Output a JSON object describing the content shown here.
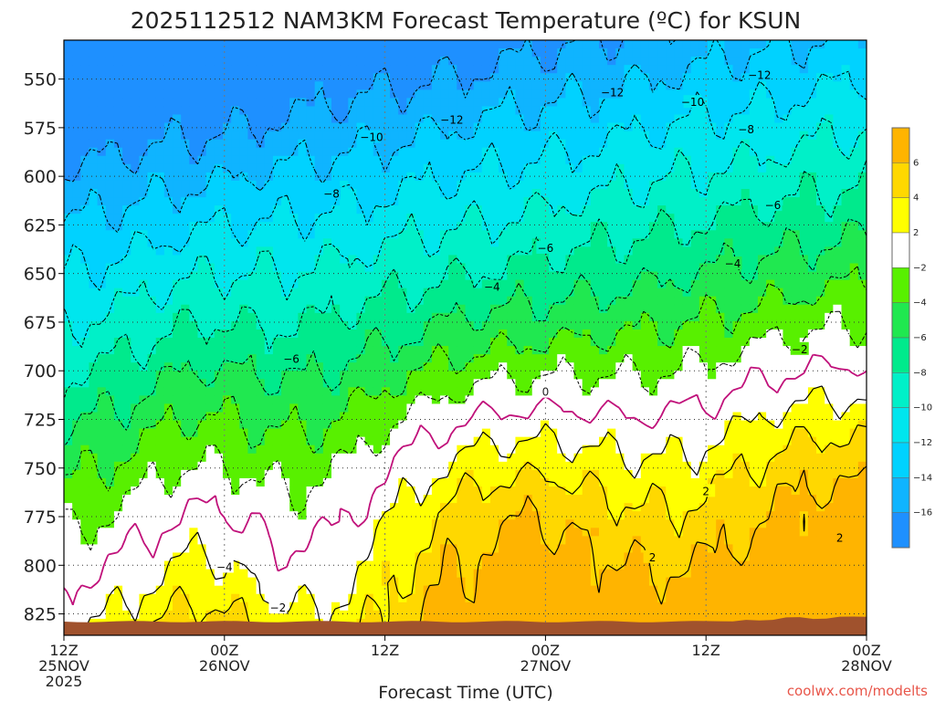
{
  "chart_data": {
    "type": "contour",
    "title": "2025112512 NAM3KM Forecast Temperature (ºC) for KSUN",
    "xlabel": "Forecast Time (UTC)",
    "credit": "coolwx.com/modelts",
    "y_axis": {
      "quantity": "pressure (hPa)",
      "inverted": true,
      "range": [
        530,
        836
      ],
      "ticks": [
        550,
        575,
        600,
        625,
        650,
        675,
        700,
        725,
        750,
        775,
        800,
        825
      ],
      "tick_labels": [
        "550",
        "575",
        "600",
        "625",
        "650",
        "675",
        "700",
        "725",
        "750",
        "775",
        "800",
        "825"
      ]
    },
    "x_axis": {
      "range_hours": [
        0,
        60
      ],
      "ticks_hours": [
        0,
        12,
        24,
        36,
        48,
        60
      ],
      "tick_labels": [
        {
          "line1": "12Z",
          "line2": "25NOV",
          "line3": "2025"
        },
        {
          "line1": "00Z",
          "line2": "26NOV",
          "line3": ""
        },
        {
          "line1": "12Z",
          "line2": "",
          "line3": ""
        },
        {
          "line1": "00Z",
          "line2": "27NOV",
          "line3": ""
        },
        {
          "line1": "12Z",
          "line2": "",
          "line3": ""
        },
        {
          "line1": "00Z",
          "line2": "28NOV",
          "line3": ""
        }
      ]
    },
    "grid": true,
    "legend": {
      "placement": "right",
      "bands": [
        {
          "min": -18,
          "max": -16,
          "color": "#1e90ff"
        },
        {
          "min": -16,
          "max": -14,
          "color": "#0fb4ff"
        },
        {
          "min": -14,
          "max": -12,
          "color": "#00d2ff"
        },
        {
          "min": -12,
          "max": -10,
          "color": "#00e6ee"
        },
        {
          "min": -10,
          "max": -8,
          "color": "#00f0c8"
        },
        {
          "min": -8,
          "max": -6,
          "color": "#00ea8c"
        },
        {
          "min": -6,
          "max": -4,
          "color": "#20e850"
        },
        {
          "min": -4,
          "max": -2,
          "color": "#58f000"
        },
        {
          "min": -2,
          "max": 2,
          "color": "#ffffff"
        },
        {
          "min": 2,
          "max": 4,
          "color": "#ffff00"
        },
        {
          "min": 4,
          "max": 6,
          "color": "#ffd800"
        },
        {
          "min": 6,
          "max": 8,
          "color": "#ffb400"
        }
      ],
      "tick_labels": [
        "6",
        "4",
        "2",
        "−2",
        "−4",
        "−6",
        "−8",
        "−10",
        "−12",
        "−14",
        "−16"
      ]
    },
    "contour_labels": [
      "−12",
      "−12",
      "−12",
      "−10",
      "−10",
      "−8",
      "−8",
      "−6",
      "−6",
      "−6",
      "−4",
      "−4",
      "−4",
      "−2",
      "−2",
      "0",
      "2",
      "2",
      "2"
    ],
    "ground_color": "#a0522d"
  }
}
